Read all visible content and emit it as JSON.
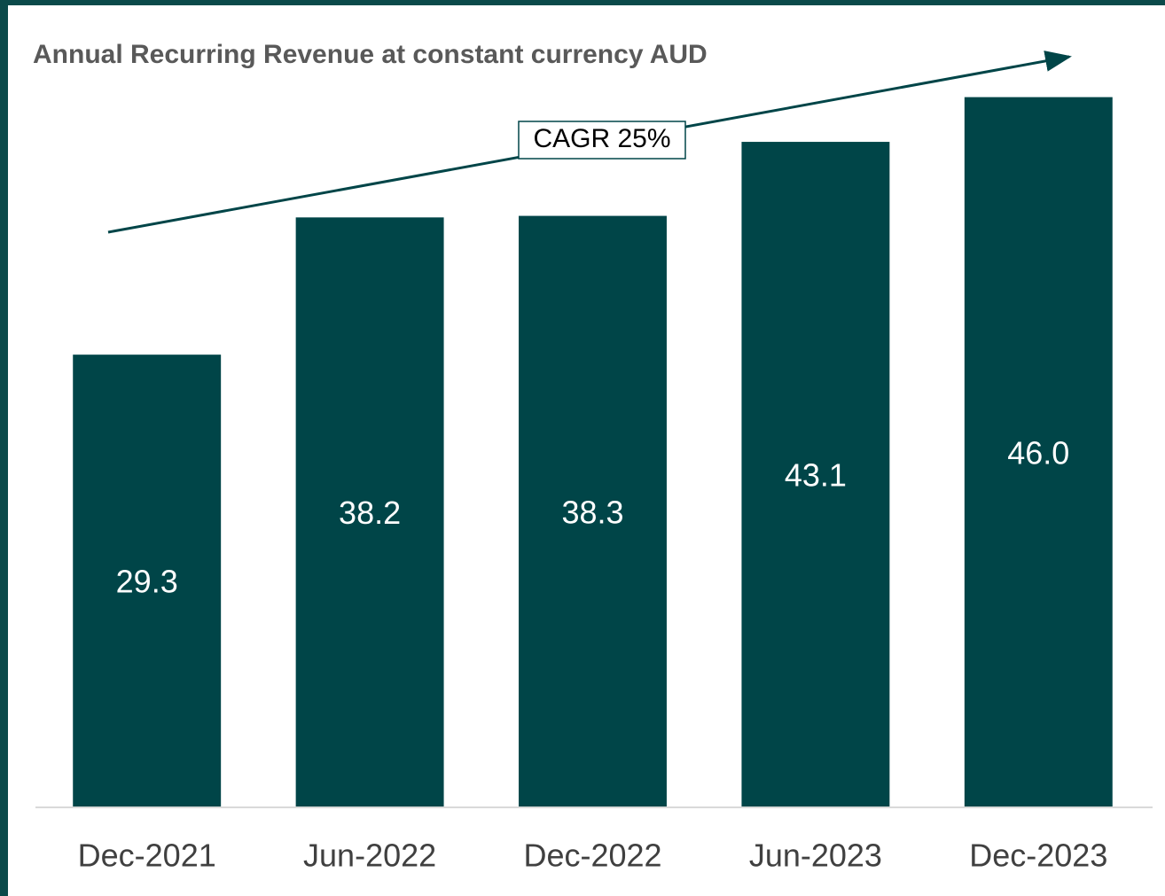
{
  "chart_data": {
    "type": "bar",
    "title": "Annual Recurring Revenue at constant currency AUD",
    "annotation": "CAGR 25%",
    "categories": [
      "Dec-2021",
      "Jun-2022",
      "Dec-2022",
      "Jun-2023",
      "Dec-2023"
    ],
    "values": [
      29.3,
      38.2,
      38.3,
      43.1,
      46.0
    ],
    "value_labels": [
      "29.3",
      "38.2",
      "38.3",
      "43.1",
      "46.0"
    ],
    "color": "#004548",
    "ylim": [
      0,
      50
    ]
  }
}
